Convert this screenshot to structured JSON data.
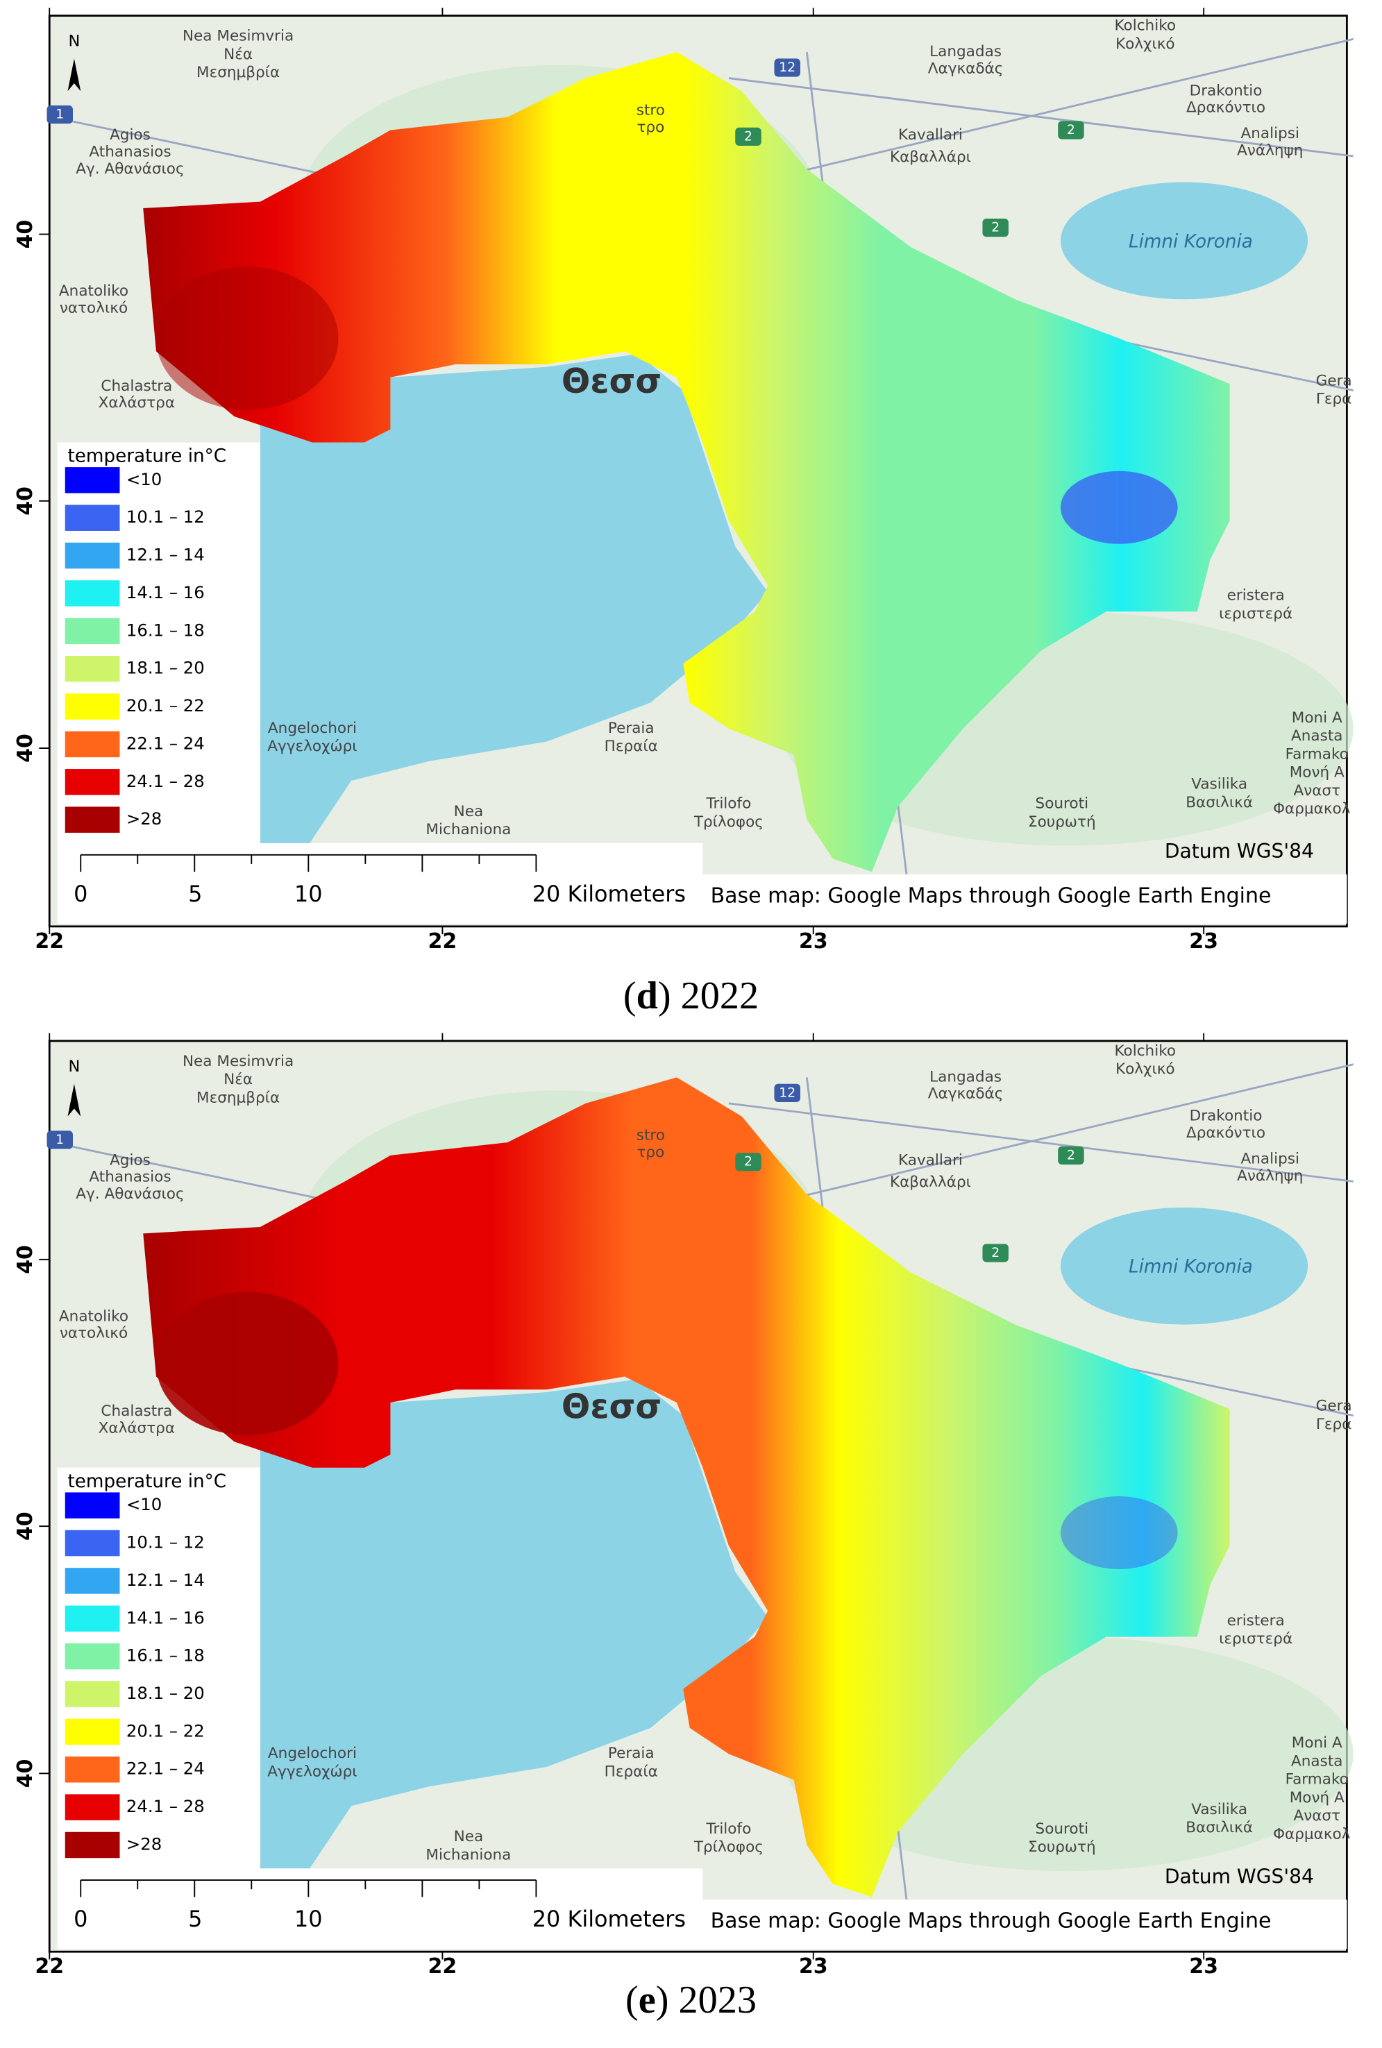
{
  "panels": [
    {
      "caption": {
        "prefix": "(",
        "letter": "d",
        "suffix": ") 2022"
      }
    },
    {
      "caption": {
        "prefix": "(",
        "letter": "e",
        "suffix": ") 2023"
      }
    }
  ],
  "north": "N",
  "legend": {
    "title": "temperature in°C",
    "items": [
      {
        "label": "<10",
        "color": "#0000ff"
      },
      {
        "label": "10.1 – 12",
        "color": "#3a64f2"
      },
      {
        "label": "12.1 – 14",
        "color": "#33a6f2"
      },
      {
        "label": "14.1 – 16",
        "color": "#1ff0f2"
      },
      {
        "label": "16.1 – 18",
        "color": "#80f2a6"
      },
      {
        "label": "18.1 – 20",
        "color": "#cef56a"
      },
      {
        "label": "20.1 – 22",
        "color": "#ffff00"
      },
      {
        "label": "22.1 – 24",
        "color": "#ff661a"
      },
      {
        "label": "24.1 – 28",
        "color": "#e60000"
      },
      {
        "label": ">28",
        "color": "#a80000"
      }
    ]
  },
  "scale_bar": {
    "labels": [
      "0",
      "5",
      "10",
      "20 Kilometers"
    ]
  },
  "datum": "Datum WGS'84",
  "base_map_note": "Base map: Google Maps through Google Earth Engine",
  "axes": {
    "left": [
      "40",
      "40",
      "40"
    ],
    "bottom": [
      "22",
      "22",
      "23",
      "23"
    ]
  },
  "place_labels": [
    "Nea Mesimvria",
    "Νέα",
    "Μεσημβρία",
    "Agios",
    "Athanasios",
    "Αγ. Αθανάσιος",
    "Anatoliko",
    "νατολικό",
    "Chalastra",
    "Χαλάστρα",
    "Langadas",
    "Λαγκαδάς",
    "Kolchiko",
    "Κολχικό",
    "Drakontio",
    "Δρακόντιο",
    "Analipsi",
    "Ανάληψη",
    "Kavallari",
    "Καβαλλάρι",
    "Limni Koronia",
    "Gera",
    "Γερα",
    "eristera",
    "ιεριστερά",
    "Moni A",
    "Anasta",
    "Farmako",
    "Μονή Α",
    "Αναστ",
    "Φαρμακολ",
    "Vasilika",
    "Βασιλικά",
    "Souroti",
    "Σουρωτή",
    "Trilofo",
    "Τρίλοφος",
    "Peraia",
    "Περαία",
    "Angelochori",
    "Αγγελοχώρι",
    "Nea",
    "Michaniona",
    "stro",
    "τρο",
    "Θεσσ"
  ],
  "road_shields": [
    "1",
    "12",
    "2",
    "2",
    "2"
  ]
}
